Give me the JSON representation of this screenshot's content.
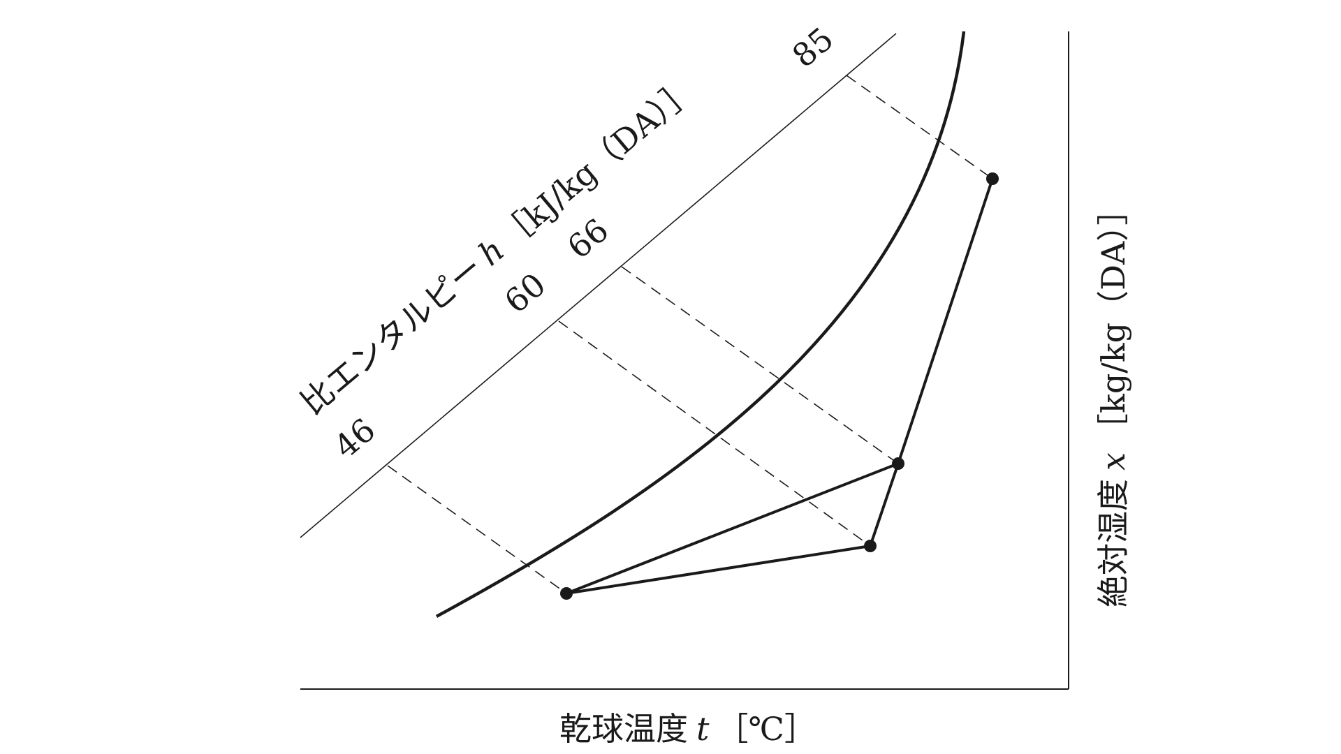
{
  "diagram": {
    "x_axis_label": "乾球温度",
    "x_axis_symbol": "t",
    "x_axis_unit": "［℃］",
    "y_axis_label": "絶対湿度",
    "y_axis_symbol": "x",
    "y_axis_unit": "［kg/kg（DA）］",
    "enthalpy_label": "比エンタルピー",
    "enthalpy_symbol": "h",
    "enthalpy_unit": "［kJ/kg（DA）］",
    "enthalpy_ticks": [
      "46",
      "60",
      "66",
      "85"
    ],
    "colors": {
      "line": "#1a1a1a",
      "background": "#ffffff"
    }
  }
}
